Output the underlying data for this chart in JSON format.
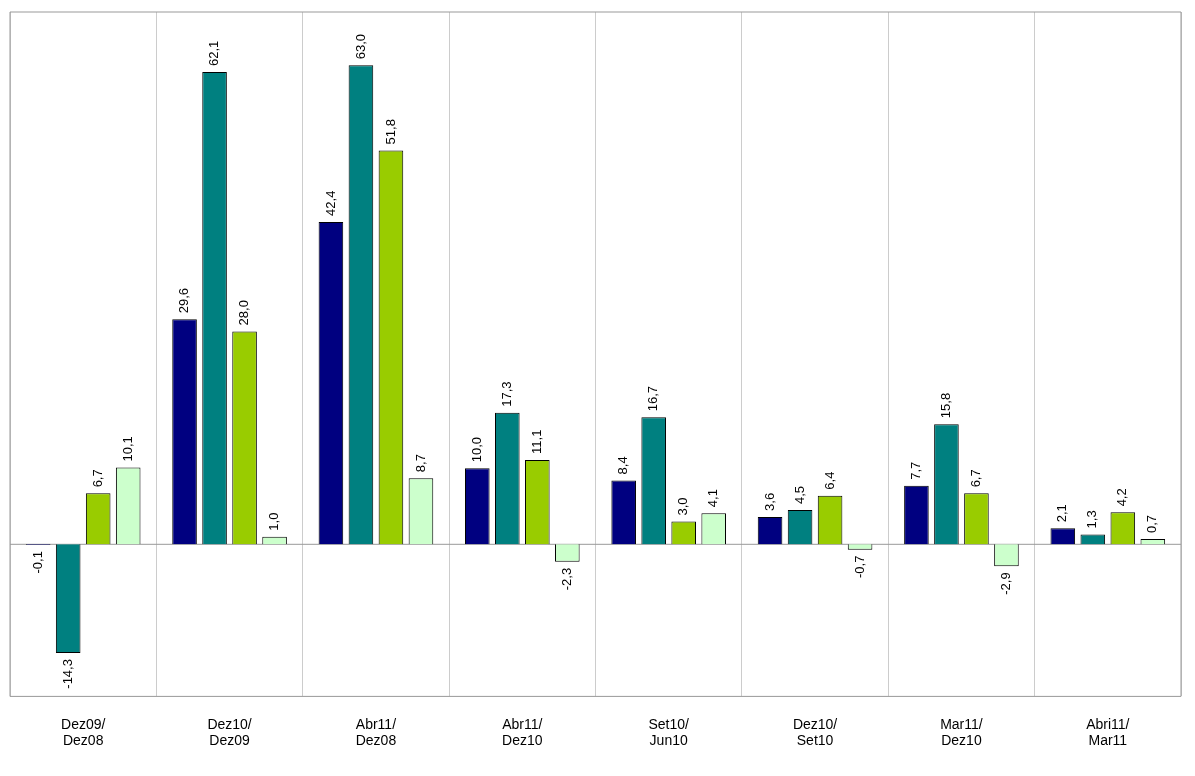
{
  "chart_data": {
    "type": "bar",
    "categories": [
      "Dez09/Dez08",
      "Dez10/Dez09",
      "Abr11/Dez08",
      "Abr11/Dez10",
      "Set10/Jun10",
      "Dez10/Set10",
      "Mar11/Dez10",
      "Abri11/Mar11"
    ],
    "series": [
      {
        "color": "#000080",
        "values": [
          -0.1,
          29.6,
          42.4,
          10.0,
          8.4,
          3.6,
          7.7,
          2.1
        ],
        "value_labels": [
          "-0,1",
          "29,6",
          "42,4",
          "10,0",
          "8,4",
          "3,6",
          "7,7",
          "2,1"
        ]
      },
      {
        "color": "#008080",
        "values": [
          -14.3,
          62.1,
          63.0,
          17.3,
          16.7,
          4.5,
          15.8,
          1.3
        ],
        "value_labels": [
          "-14,3",
          "62,1",
          "63,0",
          "17,3",
          "16,7",
          "4,5",
          "15,8",
          "1,3"
        ]
      },
      {
        "color": "#99cc00",
        "values": [
          6.7,
          28.0,
          51.8,
          11.1,
          3.0,
          6.4,
          6.7,
          4.2
        ],
        "value_labels": [
          "6,7",
          "28,0",
          "51,8",
          "11,1",
          "3,0",
          "6,4",
          "6,7",
          "4,2"
        ]
      },
      {
        "color": "#ccffcc",
        "values": [
          10.1,
          1.0,
          8.7,
          -2.3,
          4.1,
          -0.7,
          -2.9,
          0.7
        ],
        "value_labels": [
          "10,1",
          "1,0",
          "8,7",
          "-2,3",
          "4,1",
          "-0,7",
          "-2,9",
          "0,7"
        ]
      }
    ],
    "grid": "x",
    "legend": false
  }
}
